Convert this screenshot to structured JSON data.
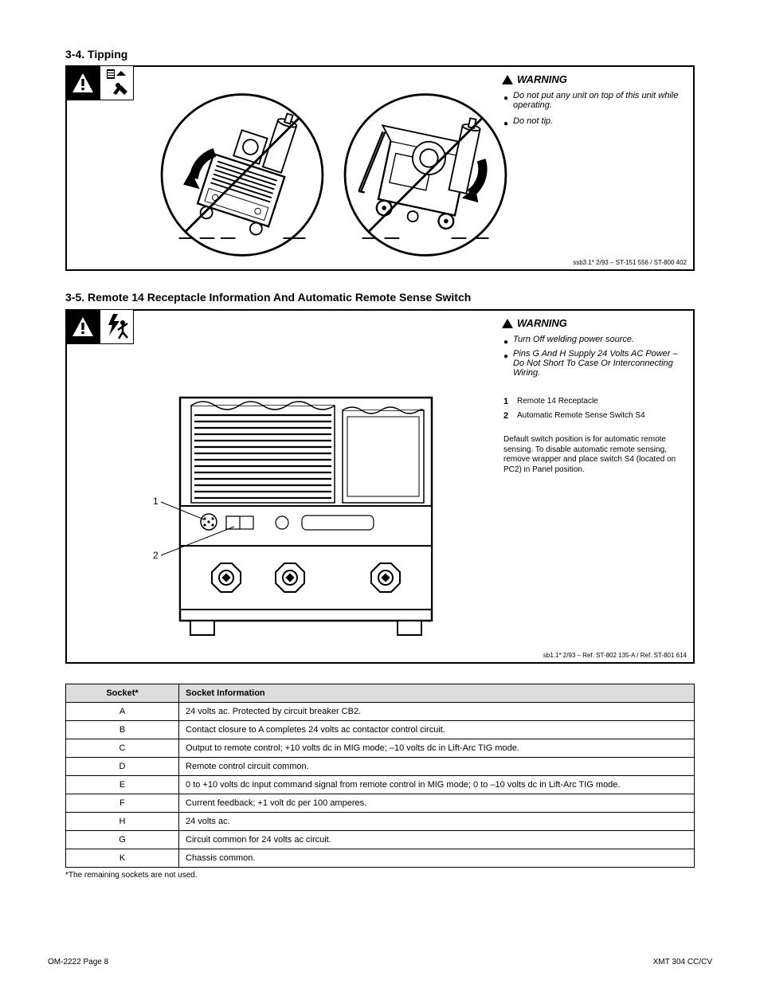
{
  "colors": {
    "text": "#000000",
    "background": "#ffffff",
    "panel_border": "#000000"
  },
  "typography": {
    "body_font": "Arial, Helvetica, sans-serif",
    "section_title_size": 14,
    "warning_size": 13,
    "bullet_size": 11,
    "callout_label_size": 11,
    "callout_body_size": 10,
    "footer_size": 10,
    "small_ref_size": 8
  },
  "section34": {
    "number": "3-4.",
    "title": "Tipping",
    "warning": "WARNING",
    "bullets": [
      "Do not put any unit on top of this unit while operating.",
      "Do not tip."
    ],
    "ref": "ssb3.1* 2/93 – ST-151 556 / ST-800 402"
  },
  "section35": {
    "number": "3-5.",
    "title": "Remote 14 Receptacle Information And Automatic Remote Sense Switch",
    "warning": "WARNING",
    "bullets": [
      "Turn Off welding power source.",
      "Pins G And H Supply 24 Volts AC Power – Do Not Short To Case Or Interconnecting Wiring."
    ],
    "callouts": {
      "c1": {
        "num": "1",
        "title": "Remote 14 Receptacle"
      },
      "c2": {
        "num": "2",
        "title": "Automatic Remote Sense Switch S4",
        "body": "Default switch position is for automatic remote sensing. To disable automatic remote sensing, remove wrapper and place switch S4 (located on PC2) in Panel position."
      }
    },
    "table": {
      "columns": [
        "Socket*",
        "Socket Information"
      ],
      "col_widths": [
        "18%",
        "82%"
      ],
      "rows": [
        [
          "A",
          "24 volts ac. Protected by circuit breaker CB2."
        ],
        [
          "B",
          "Contact closure to A completes 24 volts ac contactor control circuit."
        ],
        [
          "C",
          "Output to remote control; +10 volts dc in MIG mode; –10 volts dc in Lift-Arc TIG mode."
        ],
        [
          "D",
          "Remote control circuit common."
        ],
        [
          "E",
          "0 to +10 volts dc input command signal from remote control in MIG mode; 0 to –10 volts dc in Lift-Arc TIG mode."
        ],
        [
          "F",
          "Current feedback; +1 volt dc per 100 amperes."
        ],
        [
          "H",
          "24 volts ac."
        ],
        [
          "G",
          "Circuit common for 24 volts ac circuit."
        ],
        [
          "K",
          "Chassis common."
        ]
      ],
      "footnote": "*The remaining sockets are not used.",
      "header_bg": "#dddddd",
      "border_color": "#000000",
      "font_size": 11
    },
    "ref": "sb1.1* 2/93 – Ref. ST-802 135-A / Ref. ST-801 614"
  },
  "footer": {
    "left": "OM-2222 Page 8",
    "right": "XMT 304 CC/CV"
  }
}
